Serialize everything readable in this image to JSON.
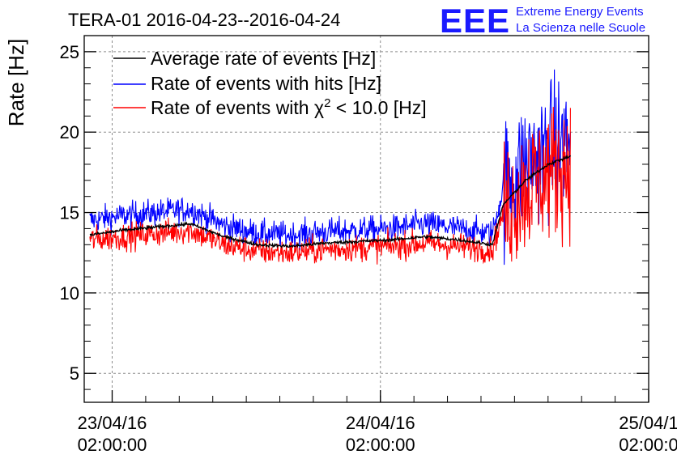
{
  "chart_data": {
    "type": "line",
    "title": "TERA-01 2016-04-23--2016-04-24",
    "ylabel": "Rate [Hz]",
    "xlabel": "",
    "ylim": [
      3.2,
      26
    ],
    "y_ticks": [
      5,
      10,
      15,
      20,
      25
    ],
    "x_range": [
      "2016-04-22 23:30",
      "2016-04-25 02:00"
    ],
    "x_ticks": [
      {
        "date": "23/04/16",
        "time": "02:00:00"
      },
      {
        "date": "24/04/16",
        "time": "02:00:00"
      },
      {
        "date": "25/04/1",
        "time": "02:00:0"
      }
    ],
    "grid": true,
    "legend_position": "top-left",
    "legend": [
      {
        "label": "Average rate of events [Hz]",
        "color": "#000000"
      },
      {
        "label": "Rate of events with hits [Hz]",
        "color": "#0000ff"
      },
      {
        "label_prefix": "Rate of events with ",
        "symbol": "χ",
        "sup": "2",
        "label_suffix": " < 10.0 [Hz]",
        "color": "#ff0000"
      }
    ],
    "series": [
      {
        "name": "Average rate of events [Hz]",
        "color": "#000000",
        "x": [
          "2016-04-23 00:00",
          "2016-04-23 03:00",
          "2016-04-23 06:00",
          "2016-04-23 09:00",
          "2016-04-23 12:00",
          "2016-04-23 15:00",
          "2016-04-23 18:00",
          "2016-04-23 21:00",
          "2016-04-24 00:00",
          "2016-04-24 03:00",
          "2016-04-24 06:00",
          "2016-04-24 09:00",
          "2016-04-24 12:00",
          "2016-04-24 13:00",
          "2016-04-24 15:00",
          "2016-04-24 17:00",
          "2016-04-24 19:00"
        ],
        "y": [
          13.6,
          13.9,
          14.1,
          14.3,
          13.5,
          13.0,
          12.9,
          13.1,
          13.2,
          13.3,
          13.5,
          13.3,
          13.0,
          15.5,
          17.0,
          18.0,
          18.5
        ]
      },
      {
        "name": "Rate of events with hits [Hz]",
        "color": "#0000ff",
        "x": [
          "2016-04-23 00:00",
          "2016-04-23 03:00",
          "2016-04-23 06:00",
          "2016-04-23 09:00",
          "2016-04-23 12:00",
          "2016-04-23 15:00",
          "2016-04-23 18:00",
          "2016-04-23 21:00",
          "2016-04-24 00:00",
          "2016-04-24 03:00",
          "2016-04-24 06:00",
          "2016-04-24 09:00",
          "2016-04-24 12:00",
          "2016-04-24 13:00",
          "2016-04-24 15:00",
          "2016-04-24 17:00",
          "2016-04-24 19:00"
        ],
        "y": [
          14.5,
          14.8,
          15.0,
          15.2,
          14.2,
          13.7,
          13.6,
          13.8,
          13.9,
          14.0,
          14.3,
          14.0,
          13.7,
          16.5,
          18.0,
          19.0,
          19.5
        ]
      },
      {
        "name": "Rate of events with χ2 < 10.0 [Hz]",
        "color": "#ff0000",
        "x": [
          "2016-04-23 00:00",
          "2016-04-23 03:00",
          "2016-04-23 06:00",
          "2016-04-23 09:00",
          "2016-04-23 12:00",
          "2016-04-23 15:00",
          "2016-04-23 18:00",
          "2016-04-23 21:00",
          "2016-04-24 00:00",
          "2016-04-24 03:00",
          "2016-04-24 06:00",
          "2016-04-24 09:00",
          "2016-04-24 12:00",
          "2016-04-24 13:00",
          "2016-04-24 15:00",
          "2016-04-24 17:00",
          "2016-04-24 19:00"
        ],
        "y": [
          13.3,
          13.5,
          13.7,
          13.9,
          13.0,
          12.6,
          12.5,
          12.7,
          12.8,
          12.9,
          13.1,
          12.9,
          12.7,
          15.0,
          16.5,
          17.5,
          18.0
        ]
      }
    ]
  },
  "logo": {
    "letters": "EEE",
    "line1": "Extreme Energy Events",
    "line2": "La Scienza nelle Scuole",
    "color": "#1a1aff"
  }
}
